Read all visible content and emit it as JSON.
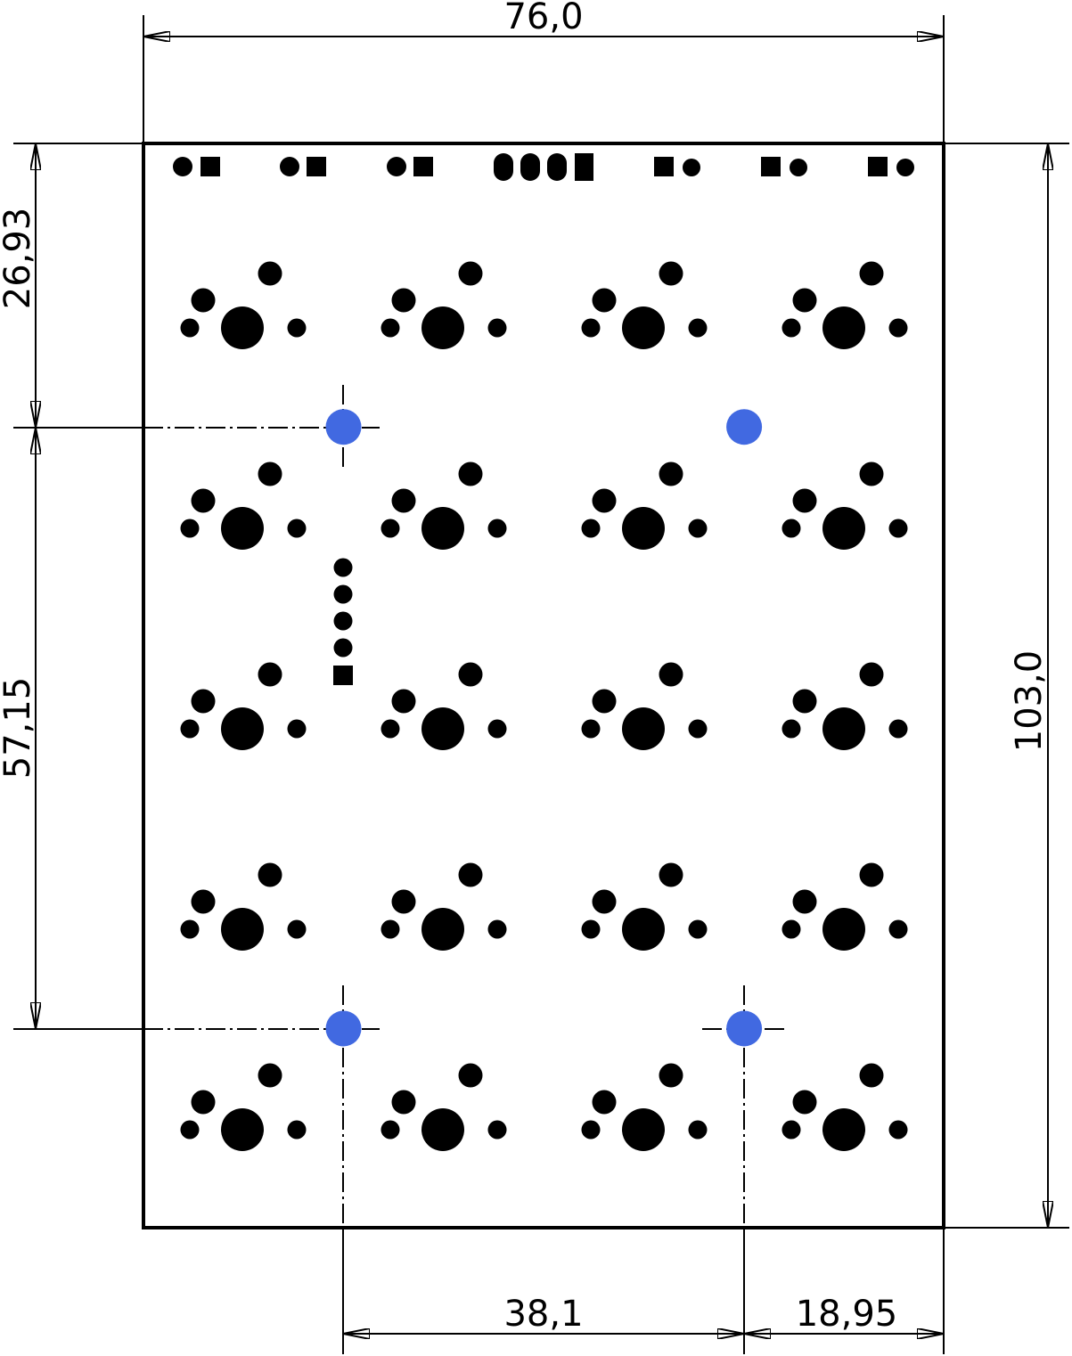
{
  "drawing": {
    "units": "mm",
    "board": {
      "width": 76.0,
      "height": 103.0
    },
    "dimensions": {
      "width_label": "76,0",
      "height_label": "103,0",
      "top_to_hole_label": "26,93",
      "hole_spacing_v_label": "57,15",
      "hole_spacing_h_label": "38,1",
      "hole_to_edge_label": "18,95"
    },
    "mounting_holes": [
      {
        "id": "hole-top-left",
        "x": 19.0,
        "y": 26.93
      },
      {
        "id": "hole-top-right",
        "x": 57.05,
        "y": 26.93
      },
      {
        "id": "hole-bottom-left",
        "x": 19.0,
        "y": 84.08
      },
      {
        "id": "hole-bottom-right",
        "x": 57.05,
        "y": 84.08
      }
    ],
    "switch_grid": {
      "columns": 4,
      "rows": 5
    },
    "header_pins": 5,
    "top_connectors": 7,
    "colors": {
      "line": "#000000",
      "pad": "#000000",
      "mounting_hole": "#4169e1",
      "background": "#ffffff"
    }
  }
}
